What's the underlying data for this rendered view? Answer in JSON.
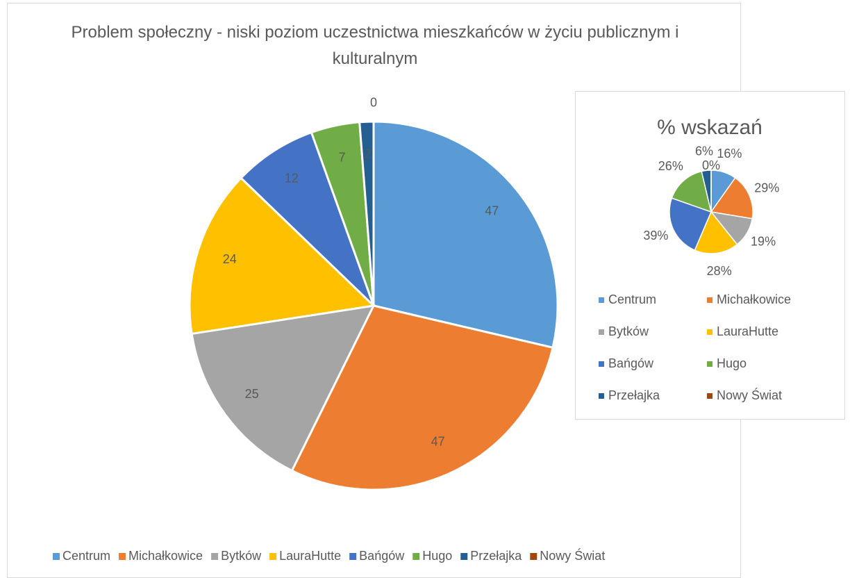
{
  "chart_data": [
    {
      "type": "pie",
      "title": "Problem społeczny - niski poziom uczestnictwa mieszkańców w życiu publicznym i kulturalnym",
      "categories": [
        "Centrum",
        "Michałkowice",
        "Bytków",
        "LauraHutte",
        "Bańgów",
        "Hugo",
        "Przełajka",
        "Nowy Świat"
      ],
      "values": [
        47,
        47,
        25,
        24,
        12,
        7,
        2,
        0
      ],
      "colors": [
        "#5b9bd5",
        "#ed7d31",
        "#a5a5a5",
        "#ffc000",
        "#4472c4",
        "#70ad47",
        "#255e91",
        "#9e480e"
      ],
      "legend": "bottom"
    },
    {
      "type": "pie",
      "title": "% wskazań",
      "categories": [
        "Centrum",
        "Michałkowice",
        "Bytków",
        "LauraHutte",
        "Bańgów",
        "Hugo",
        "Przełajka",
        "Nowy Świat"
      ],
      "values": [
        16,
        29,
        19,
        28,
        39,
        26,
        6,
        0
      ],
      "value_labels": [
        "16%",
        "29%",
        "19%",
        "28%",
        "39%",
        "26%",
        "6%",
        "0%"
      ],
      "colors": [
        "#5b9bd5",
        "#ed7d31",
        "#a5a5a5",
        "#ffc000",
        "#4472c4",
        "#70ad47",
        "#255e91",
        "#9e480e"
      ],
      "legend": "bottom"
    }
  ]
}
